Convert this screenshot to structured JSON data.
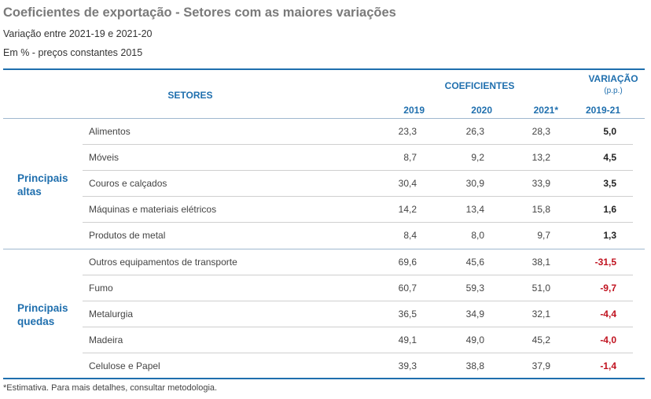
{
  "header": {
    "title_main": "Coeficientes de exportação",
    "title_sub": " - Setores com as maiores variações",
    "subtitle1": "Variação entre 2021-19 e 2021-20",
    "subtitle2": "Em % - preços constantes 2015"
  },
  "table": {
    "col_setores": "SETORES",
    "col_coeficientes": "COEFICIENTES",
    "col_variacao": "VARIAÇÃO",
    "col_variacao_unit": "(p.p.)",
    "years": [
      "2019",
      "2020",
      "2021*"
    ],
    "col_variacao_period": "2019-21",
    "groups": [
      {
        "label": "Principais altas",
        "rows": [
          {
            "sector": "Alimentos",
            "y2019": "23,3",
            "y2020": "26,3",
            "y2021": "28,3",
            "var": "5,0"
          },
          {
            "sector": "Móveis",
            "y2019": "8,7",
            "y2020": "9,2",
            "y2021": "13,2",
            "var": "4,5"
          },
          {
            "sector": "Couros e calçados",
            "y2019": "30,4",
            "y2020": "30,9",
            "y2021": "33,9",
            "var": "3,5"
          },
          {
            "sector": "Máquinas e materiais elétricos",
            "y2019": "14,2",
            "y2020": "13,4",
            "y2021": "15,8",
            "var": "1,6"
          },
          {
            "sector": "Produtos de metal",
            "y2019": "8,4",
            "y2020": "8,0",
            "y2021": "9,7",
            "var": "1,3"
          }
        ]
      },
      {
        "label": "Principais quedas",
        "rows": [
          {
            "sector": "Outros equipamentos de transporte",
            "y2019": "69,6",
            "y2020": "45,6",
            "y2021": "38,1",
            "var": "-31,5"
          },
          {
            "sector": "Fumo",
            "y2019": "60,7",
            "y2020": "59,3",
            "y2021": "51,0",
            "var": "-9,7"
          },
          {
            "sector": "Metalurgia",
            "y2019": "36,5",
            "y2020": "34,9",
            "y2021": "32,1",
            "var": "-4,4"
          },
          {
            "sector": "Madeira",
            "y2019": "49,1",
            "y2020": "49,0",
            "y2021": "45,2",
            "var": "-4,0"
          },
          {
            "sector": "Celulose e Papel",
            "y2019": "39,3",
            "y2020": "38,8",
            "y2021": "37,9",
            "var": "-1,4"
          }
        ]
      }
    ]
  },
  "footnote": "*Estimativa. Para mais detalhes, consultar metodologia.",
  "colors": {
    "accent": "#1f6fae",
    "negative": "#c0121f",
    "title": "#7a7a7a"
  }
}
